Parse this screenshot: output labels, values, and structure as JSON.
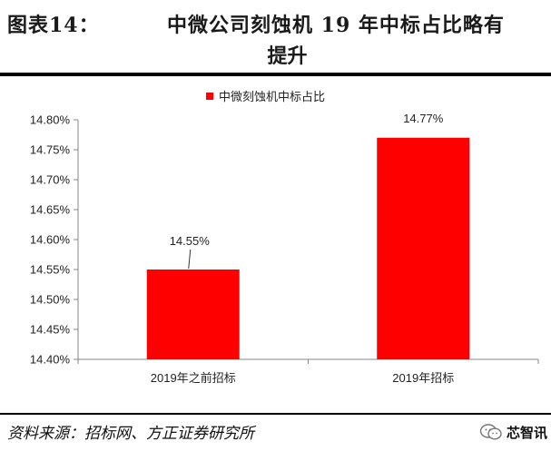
{
  "header": {
    "label": "图表14：",
    "title_line1": "中微公司刻蚀机 19 年中标占比略有",
    "title_line2": "提升"
  },
  "source": "资料来源：招标网、方正证券研究所",
  "watermark": {
    "text": "芯智讯",
    "icon": "wechat-icon"
  },
  "colors": {
    "bar": "#FF0000",
    "rule": "#000000"
  },
  "chart_data": {
    "type": "bar",
    "categories": [
      "2019年之前招标",
      "2019年招标"
    ],
    "series": [
      {
        "name": "中微刻蚀机中标占比",
        "values": [
          14.55,
          14.77
        ],
        "data_labels": [
          "14.55%",
          "14.77%"
        ]
      }
    ],
    "ylim": [
      14.4,
      14.8
    ],
    "yticks": [
      "14.40%",
      "14.45%",
      "14.50%",
      "14.55%",
      "14.60%",
      "14.65%",
      "14.70%",
      "14.75%",
      "14.80%"
    ],
    "legend": "top-center",
    "grid": false
  }
}
